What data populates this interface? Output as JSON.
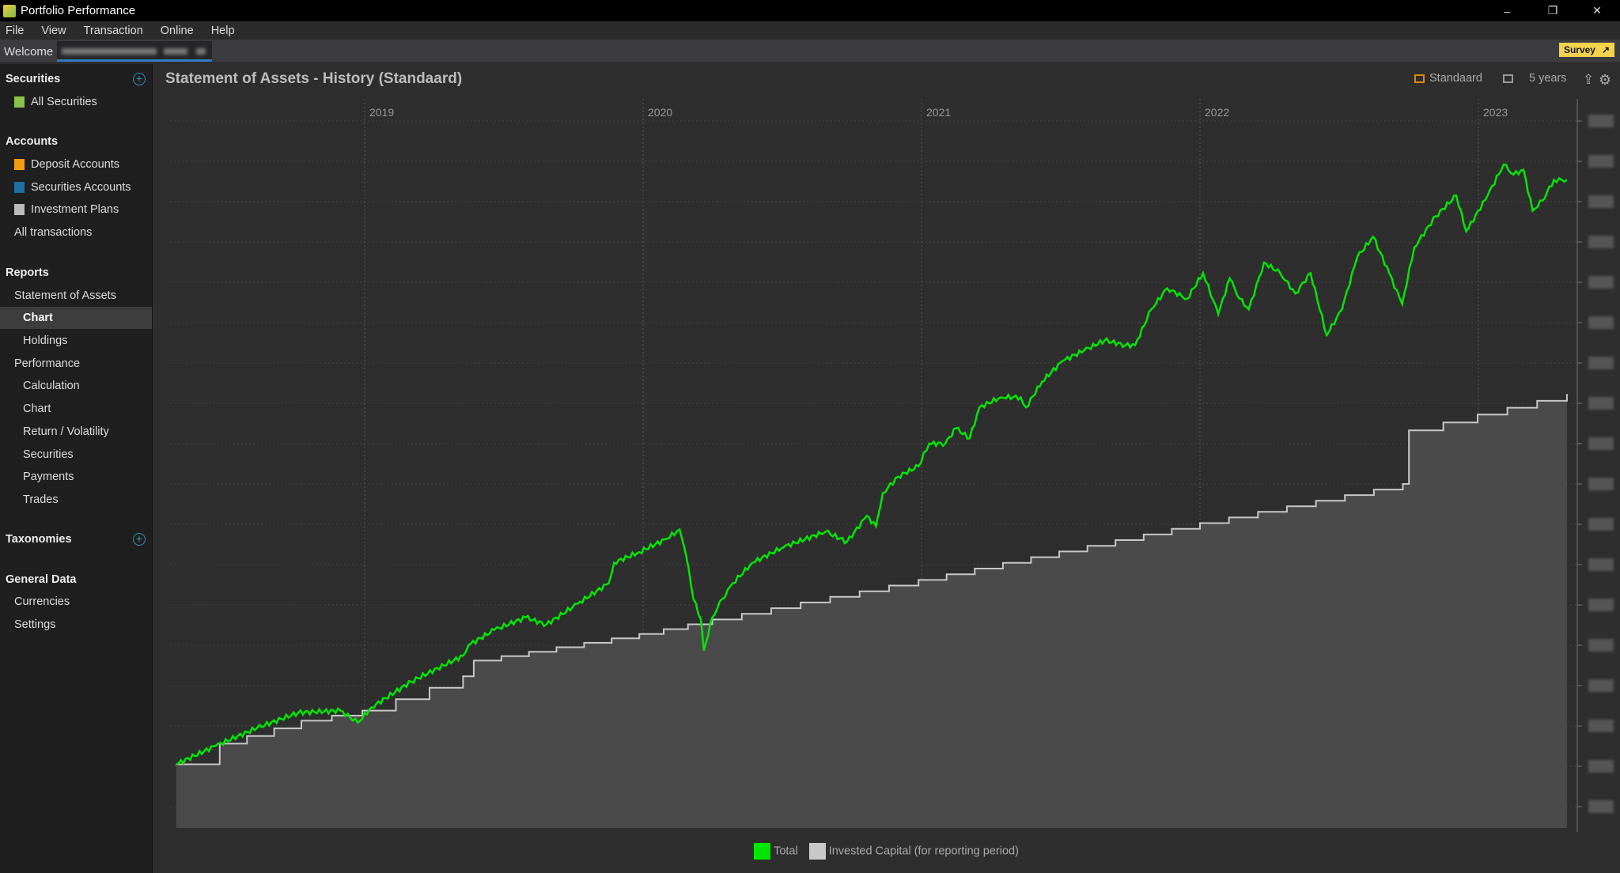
{
  "window": {
    "title": "Portfolio Performance",
    "minimize": "–",
    "restore": "❐",
    "close": "✕"
  },
  "menu": [
    "File",
    "View",
    "Transaction",
    "Online",
    "Help"
  ],
  "tabs": {
    "welcome": "Welcome",
    "survey": "Survey"
  },
  "sidebar": {
    "securities": {
      "header": "Securities",
      "items": [
        "All Securities"
      ]
    },
    "accounts": {
      "header": "Accounts",
      "items": [
        "Deposit Accounts",
        "Securities Accounts",
        "Investment Plans",
        "All transactions"
      ]
    },
    "reports": {
      "header": "Reports",
      "items": [
        "Statement of Assets",
        "Chart",
        "Holdings",
        "Performance",
        "Calculation",
        "Chart",
        "Return / Volatility",
        "Securities",
        "Payments",
        "Trades"
      ]
    },
    "taxonomies": {
      "header": "Taxonomies"
    },
    "general": {
      "header": "General Data",
      "items": [
        "Currencies",
        "Settings"
      ]
    }
  },
  "page": {
    "title": "Statement of Assets - History (Standaard)",
    "view": "Standaard",
    "period": "5 years"
  },
  "colors": {
    "total": "#00e600",
    "invested": "#c8c8c8",
    "invested_fill": "#4a4a4a",
    "accent": "#2f8fbf",
    "survey": "#f3d34a"
  },
  "chart_data": {
    "type": "area",
    "x_ticks": [
      "2019",
      "2020",
      "2021",
      "2022",
      "2023"
    ],
    "y_tick_labels": "blurred",
    "ylim": [
      -0.54,
      17.3
    ],
    "grid": true,
    "legend_placement": "bottom",
    "series": [
      {
        "name": "Total",
        "type": "line",
        "points": [
          [
            "2018-04-29",
            1.05
          ],
          [
            "2018-06-20",
            1.51
          ],
          [
            "2018-08-13",
            1.95
          ],
          [
            "2018-10-06",
            2.33
          ],
          [
            "2018-11-30",
            2.38
          ],
          [
            "2018-12-23",
            2.08
          ],
          [
            "2019-01-10",
            2.46
          ],
          [
            "2019-03-03",
            3.1
          ],
          [
            "2019-05-10",
            3.74
          ],
          [
            "2019-05-17",
            4.0
          ],
          [
            "2019-06-20",
            4.38
          ],
          [
            "2019-07-31",
            4.69
          ],
          [
            "2019-08-27",
            4.51
          ],
          [
            "2019-10-07",
            5.03
          ],
          [
            "2019-11-17",
            5.54
          ],
          [
            "2019-11-24",
            6.05
          ],
          [
            "2019-12-27",
            6.31
          ],
          [
            "2020-02-01",
            6.64
          ],
          [
            "2020-02-18",
            6.87
          ],
          [
            "2020-02-27",
            6.18
          ],
          [
            "2020-03-07",
            5.15
          ],
          [
            "2020-03-17",
            4.64
          ],
          [
            "2020-03-21",
            3.87
          ],
          [
            "2020-04-01",
            4.69
          ],
          [
            "2020-04-14",
            5.15
          ],
          [
            "2020-04-28",
            5.54
          ],
          [
            "2020-05-24",
            6.05
          ],
          [
            "2020-07-04",
            6.44
          ],
          [
            "2020-08-28",
            6.82
          ],
          [
            "2020-09-25",
            6.56
          ],
          [
            "2020-10-21",
            7.21
          ],
          [
            "2020-11-02",
            6.95
          ],
          [
            "2020-11-11",
            7.77
          ],
          [
            "2020-12-01",
            8.18
          ],
          [
            "2020-12-28",
            8.44
          ],
          [
            "2021-01-11",
            9.0
          ],
          [
            "2021-02-01",
            9.0
          ],
          [
            "2021-02-15",
            9.38
          ],
          [
            "2021-03-05",
            9.13
          ],
          [
            "2021-03-18",
            9.9
          ],
          [
            "2021-04-15",
            10.15
          ],
          [
            "2021-05-11",
            10.15
          ],
          [
            "2021-05-18",
            9.9
          ],
          [
            "2021-06-08",
            10.54
          ],
          [
            "2021-07-05",
            11.05
          ],
          [
            "2021-08-02",
            11.31
          ],
          [
            "2021-08-29",
            11.56
          ],
          [
            "2021-09-25",
            11.44
          ],
          [
            "2021-10-08",
            11.44
          ],
          [
            "2021-10-29",
            12.33
          ],
          [
            "2021-11-19",
            12.85
          ],
          [
            "2021-12-15",
            12.59
          ],
          [
            "2022-01-05",
            13.23
          ],
          [
            "2022-01-25",
            12.21
          ],
          [
            "2022-02-09",
            13.1
          ],
          [
            "2022-02-22",
            12.59
          ],
          [
            "2022-03-06",
            12.33
          ],
          [
            "2022-03-26",
            13.49
          ],
          [
            "2022-04-16",
            13.23
          ],
          [
            "2022-05-06",
            12.72
          ],
          [
            "2022-05-26",
            13.23
          ],
          [
            "2022-06-16",
            11.69
          ],
          [
            "2022-07-06",
            12.33
          ],
          [
            "2022-07-26",
            13.62
          ],
          [
            "2022-08-16",
            14.13
          ],
          [
            "2022-09-06",
            13.23
          ],
          [
            "2022-09-23",
            12.46
          ],
          [
            "2022-10-09",
            13.87
          ],
          [
            "2022-11-06",
            14.64
          ],
          [
            "2022-12-03",
            15.15
          ],
          [
            "2022-12-16",
            14.26
          ],
          [
            "2023-01-13",
            15.15
          ],
          [
            "2023-02-03",
            15.92
          ],
          [
            "2023-02-16",
            15.67
          ],
          [
            "2023-03-01",
            15.79
          ],
          [
            "2023-03-13",
            14.77
          ],
          [
            "2023-03-26",
            15.03
          ],
          [
            "2023-04-10",
            15.54
          ],
          [
            "2023-04-27",
            15.54
          ]
        ]
      },
      {
        "name": "Invested Capital (for reporting period)",
        "type": "step-area",
        "points": [
          [
            "2018-04-29",
            1.05
          ],
          [
            "2018-06-25",
            1.56
          ],
          [
            "2018-10-10",
            2.13
          ],
          [
            "2018-12-29",
            2.38
          ],
          [
            "2019-05-10",
            3.23
          ],
          [
            "2019-05-24",
            3.62
          ],
          [
            "2019-12-27",
            4.28
          ],
          [
            "2020-04-01",
            4.64
          ],
          [
            "2020-12-28",
            5.62
          ],
          [
            "2022-01-01",
            7.03
          ],
          [
            "2022-09-24",
            8.0
          ],
          [
            "2022-10-02",
            9.33
          ],
          [
            "2022-12-31",
            9.72
          ],
          [
            "2023-04-27",
            10.23
          ]
        ]
      }
    ]
  }
}
